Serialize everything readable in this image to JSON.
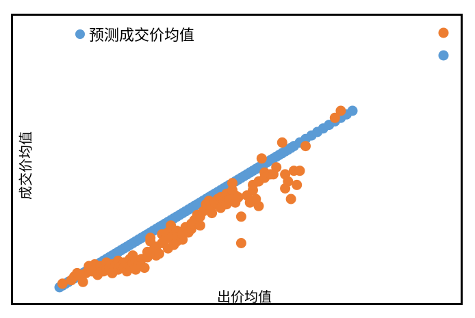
{
  "chart_data": {
    "type": "scatter",
    "title": "",
    "xlabel": "出价均值",
    "ylabel": "成交价均值",
    "grid": false,
    "legend_position": "top-left",
    "colors": {
      "predicted": "#5B9BD5",
      "actual": "#ED7D31"
    },
    "series": [
      {
        "name": "预测成交价均值",
        "points": [
          [
            0.0,
            0.0
          ],
          [
            1.0,
            1.0
          ],
          [
            2.0,
            2.0
          ],
          [
            3.0,
            3.0
          ],
          [
            4.0,
            4.0
          ],
          [
            5.0,
            5.0
          ],
          [
            6.0,
            6.0
          ],
          [
            7.0,
            7.0
          ],
          [
            8.0,
            8.0
          ],
          [
            9.0,
            9.0
          ],
          [
            10.0,
            10.0
          ],
          [
            11.0,
            11.0
          ],
          [
            12.0,
            12.0
          ],
          [
            13.0,
            13.0
          ],
          [
            14.0,
            14.0
          ],
          [
            15.0,
            15.0
          ],
          [
            16.0,
            16.0
          ],
          [
            17.0,
            17.0
          ],
          [
            18.0,
            18.0
          ],
          [
            19.0,
            19.0
          ],
          [
            20.0,
            20.0
          ],
          [
            21.0,
            21.0
          ],
          [
            22.0,
            22.0
          ],
          [
            23.0,
            23.0
          ],
          [
            24.0,
            24.0
          ],
          [
            25.0,
            25.0
          ],
          [
            26.0,
            26.0
          ],
          [
            27.0,
            27.0
          ],
          [
            28.0,
            28.0
          ],
          [
            29.0,
            29.0
          ],
          [
            30.0,
            30.0
          ],
          [
            31.0,
            31.0
          ],
          [
            32.0,
            32.0
          ],
          [
            33.0,
            33.0
          ],
          [
            34.0,
            34.0
          ],
          [
            35.0,
            35.0
          ],
          [
            36.0,
            36.0
          ],
          [
            37.0,
            37.0
          ],
          [
            38.0,
            38.0
          ],
          [
            39.0,
            39.0
          ],
          [
            40.0,
            40.0
          ],
          [
            41.0,
            41.0
          ],
          [
            42.0,
            42.0
          ],
          [
            43.0,
            43.0
          ],
          [
            44.0,
            44.0
          ],
          [
            45.0,
            45.0
          ],
          [
            46.0,
            46.0
          ],
          [
            47.0,
            47.0
          ],
          [
            48.0,
            48.0
          ],
          [
            49.0,
            49.0
          ],
          [
            50.0,
            50.0
          ],
          [
            51.0,
            51.0
          ],
          [
            52.0,
            52.0
          ],
          [
            53.0,
            53.0
          ],
          [
            54.0,
            54.0
          ],
          [
            55.0,
            55.0
          ],
          [
            56.0,
            56.0
          ],
          [
            57.0,
            57.0
          ],
          [
            58.0,
            58.0
          ],
          [
            59.0,
            59.0
          ],
          [
            60.0,
            60.0
          ],
          [
            61.0,
            61.0
          ],
          [
            62.0,
            62.0
          ],
          [
            63.0,
            63.0
          ],
          [
            64.0,
            64.0
          ],
          [
            65.0,
            65.0
          ],
          [
            66.0,
            66.0
          ],
          [
            67.0,
            67.0
          ],
          [
            68.0,
            68.0
          ],
          [
            69.0,
            69.0
          ],
          [
            70.0,
            70.0
          ],
          [
            71.0,
            71.0
          ],
          [
            72.0,
            72.0
          ],
          [
            73.0,
            73.0
          ],
          [
            74.0,
            74.0
          ],
          [
            75.0,
            75.0
          ],
          [
            76.0,
            76.0
          ],
          [
            77.0,
            77.0
          ],
          [
            78.0,
            78.0
          ],
          [
            79.0,
            79.0
          ],
          [
            80.0,
            80.0
          ],
          [
            82.0,
            82.0
          ],
          [
            84.0,
            84.0
          ],
          [
            86.0,
            86.0
          ],
          [
            88.0,
            88.0
          ],
          [
            90.0,
            90.0
          ],
          [
            92.0,
            92.0
          ],
          [
            94.0,
            94.0
          ],
          [
            96.0,
            96.0
          ],
          [
            98.0,
            98.0
          ],
          [
            100.0,
            100.0
          ]
        ]
      },
      {
        "name": "",
        "points": [
          [
            1,
            2
          ],
          [
            4,
            4
          ],
          [
            5,
            6
          ],
          [
            6,
            8
          ],
          [
            7,
            7
          ],
          [
            8,
            3
          ],
          [
            9,
            8
          ],
          [
            10,
            10
          ],
          [
            10,
            12
          ],
          [
            11,
            9
          ],
          [
            12,
            13
          ],
          [
            12,
            10
          ],
          [
            13,
            7
          ],
          [
            14,
            10
          ],
          [
            14,
            12
          ],
          [
            15,
            11
          ],
          [
            15,
            9
          ],
          [
            16,
            14
          ],
          [
            16,
            10
          ],
          [
            17,
            11
          ],
          [
            18,
            8
          ],
          [
            18,
            13
          ],
          [
            19,
            12
          ],
          [
            20,
            10
          ],
          [
            20,
            15
          ],
          [
            21,
            12
          ],
          [
            22,
            14
          ],
          [
            22,
            11
          ],
          [
            23,
            9
          ],
          [
            24,
            16
          ],
          [
            24,
            12
          ],
          [
            25,
            14
          ],
          [
            25,
            18
          ],
          [
            26,
            15
          ],
          [
            26,
            10
          ],
          [
            27,
            13
          ],
          [
            28,
            16
          ],
          [
            28,
            12
          ],
          [
            29,
            11
          ],
          [
            30,
            17
          ],
          [
            30,
            20
          ],
          [
            31,
            26
          ],
          [
            31,
            28
          ],
          [
            32,
            21
          ],
          [
            33,
            18
          ],
          [
            33,
            23
          ],
          [
            34,
            19
          ],
          [
            35,
            25
          ],
          [
            35,
            30
          ],
          [
            36,
            27
          ],
          [
            37,
            22
          ],
          [
            37,
            31
          ],
          [
            38,
            28
          ],
          [
            38,
            35
          ],
          [
            39,
            24
          ],
          [
            40,
            26
          ],
          [
            40,
            32
          ],
          [
            41,
            29
          ],
          [
            42,
            27
          ],
          [
            42,
            30
          ],
          [
            43,
            34
          ],
          [
            44,
            31
          ],
          [
            45,
            33
          ],
          [
            45,
            36
          ],
          [
            46,
            38
          ],
          [
            47,
            41
          ],
          [
            48,
            35
          ],
          [
            48,
            40
          ],
          [
            49,
            43
          ],
          [
            50,
            44
          ],
          [
            50,
            47
          ],
          [
            51,
            49
          ],
          [
            52,
            42
          ],
          [
            52,
            46
          ],
          [
            53,
            48
          ],
          [
            54,
            50
          ],
          [
            55,
            51
          ],
          [
            55,
            45
          ],
          [
            56,
            49
          ],
          [
            57,
            47
          ],
          [
            57,
            53
          ],
          [
            58,
            50
          ],
          [
            59,
            55
          ],
          [
            59,
            59
          ],
          [
            60,
            48
          ],
          [
            60,
            52
          ],
          [
            61,
            51
          ],
          [
            62,
            25
          ],
          [
            62,
            40
          ],
          [
            64,
            52
          ],
          [
            65,
            48
          ],
          [
            66,
            55
          ],
          [
            66,
            58
          ],
          [
            67,
            50
          ],
          [
            68,
            46
          ],
          [
            68,
            60
          ],
          [
            69,
            73
          ],
          [
            70,
            65
          ],
          [
            70,
            62
          ],
          [
            72,
            64
          ],
          [
            73,
            64
          ],
          [
            74,
            68
          ],
          [
            76,
            82
          ],
          [
            77,
            64
          ],
          [
            77,
            56
          ],
          [
            78,
            60
          ],
          [
            79,
            50
          ],
          [
            80,
            66
          ],
          [
            81,
            58
          ],
          [
            82,
            66
          ],
          [
            84,
            80
          ],
          [
            96,
            100
          ],
          [
            94,
            96
          ]
        ]
      }
    ]
  }
}
